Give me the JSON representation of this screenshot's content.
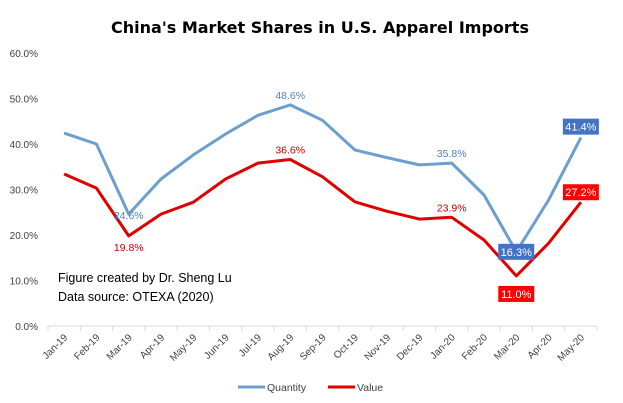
{
  "chart_data": {
    "type": "line",
    "title": "China's Market Shares in U.S. Apparel Imports",
    "xlabel": "",
    "ylabel": "",
    "ylim": [
      0,
      60
    ],
    "y_ticks": [
      "0.0%",
      "10.0%",
      "20.0%",
      "30.0%",
      "40.0%",
      "50.0%",
      "60.0%"
    ],
    "grid": false,
    "legend_position": "bottom",
    "categories": [
      "Jan-19",
      "Feb-19",
      "Mar-19",
      "Apr-19",
      "May-19",
      "Jun-19",
      "Jul-19",
      "Aug-19",
      "Sep-19",
      "Oct-19",
      "Nov-19",
      "Dec-19",
      "Jan-20",
      "Feb-20",
      "Mar-20",
      "Apr-20",
      "May-20"
    ],
    "series": [
      {
        "name": "Quantity",
        "color": "#6A9FCF",
        "values": [
          42.4,
          40.0,
          24.6,
          32.3,
          37.6,
          42.2,
          46.3,
          48.6,
          45.2,
          38.7,
          37.0,
          35.4,
          35.8,
          28.8,
          16.3,
          27.7,
          41.4
        ],
        "labels": [
          {
            "index": 2,
            "text": "24.6%",
            "boxed": false
          },
          {
            "index": 7,
            "text": "48.6%",
            "boxed": false
          },
          {
            "index": 12,
            "text": "35.8%",
            "boxed": false
          },
          {
            "index": 14,
            "text": "16.3%",
            "boxed": true,
            "box_color": "#4472C4"
          },
          {
            "index": 16,
            "text": "41.4%",
            "boxed": true,
            "box_color": "#4472C4"
          }
        ]
      },
      {
        "name": "Value",
        "color": "#E00000",
        "values": [
          33.4,
          30.3,
          19.8,
          24.6,
          27.2,
          32.3,
          35.8,
          36.6,
          32.8,
          27.3,
          25.2,
          23.5,
          23.9,
          18.9,
          11.0,
          18.2,
          27.2
        ],
        "labels": [
          {
            "index": 2,
            "text": "19.8%",
            "boxed": false
          },
          {
            "index": 7,
            "text": "36.6%",
            "boxed": false
          },
          {
            "index": 12,
            "text": "23.9%",
            "boxed": false
          },
          {
            "index": 14,
            "text": "11.0%",
            "boxed": true,
            "box_color": "#FF0000"
          },
          {
            "index": 16,
            "text": "27.2%",
            "boxed": true,
            "box_color": "#FF0000"
          }
        ]
      }
    ],
    "annotations": [
      "Figure created by Dr. Sheng Lu",
      "Data source: OTEXA (2020)"
    ]
  }
}
